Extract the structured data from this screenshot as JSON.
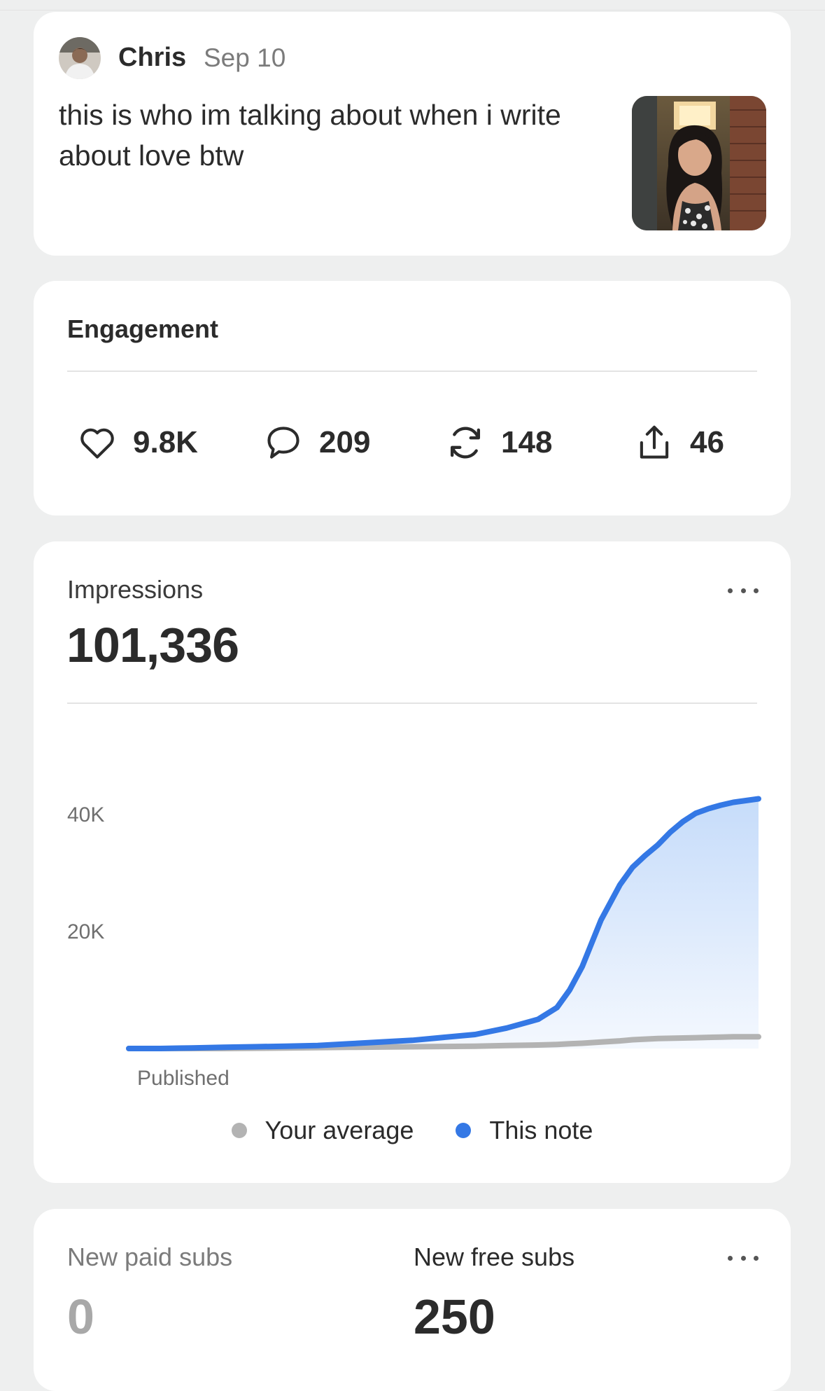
{
  "note": {
    "author": "Chris",
    "date": "Sep 10",
    "text": "this is who im talking about when i write about love btw"
  },
  "engagement": {
    "title": "Engagement",
    "likes": "9.8K",
    "comments": "209",
    "restacks": "148",
    "shares": "46"
  },
  "impressions": {
    "label": "Impressions",
    "total": "101,336",
    "legend": {
      "average": "Your average",
      "this_note": "This note"
    }
  },
  "chart_data": {
    "type": "area",
    "title": "",
    "xlabel": "",
    "ylabel": "",
    "x_tick_labels": [
      "Published"
    ],
    "y_ticks": [
      "20K",
      "40K"
    ],
    "y_tick_values": [
      20000,
      40000
    ],
    "ylim": [
      0,
      44000
    ],
    "legend_position": "bottom",
    "grid": false,
    "x": [
      0,
      0.05,
      0.1,
      0.15,
      0.2,
      0.25,
      0.3,
      0.35,
      0.4,
      0.45,
      0.5,
      0.55,
      0.6,
      0.65,
      0.68,
      0.7,
      0.72,
      0.75,
      0.78,
      0.8,
      0.82,
      0.84,
      0.86,
      0.88,
      0.9,
      0.92,
      0.94,
      0.96,
      0.98,
      1.0
    ],
    "series": [
      {
        "name": "Your average",
        "color": "#b3b3b3",
        "values": [
          0,
          0,
          0,
          0,
          50,
          100,
          150,
          200,
          250,
          300,
          350,
          400,
          500,
          600,
          700,
          800,
          900,
          1100,
          1300,
          1500,
          1600,
          1700,
          1750,
          1800,
          1850,
          1900,
          1950,
          2000,
          2000,
          2000
        ]
      },
      {
        "name": "This note",
        "color": "#3478e5",
        "values": [
          0,
          0,
          100,
          200,
          300,
          400,
          500,
          800,
          1100,
          1400,
          1900,
          2400,
          3500,
          5000,
          7000,
          10000,
          14000,
          22000,
          28000,
          31000,
          33000,
          34800,
          37000,
          38800,
          40200,
          41000,
          41600,
          42100,
          42400,
          42700
        ]
      }
    ]
  },
  "subs": {
    "paid_label": "New paid subs",
    "paid_value": "0",
    "free_label": "New free subs",
    "free_value": "250"
  },
  "colors": {
    "accent": "#3478e5",
    "average": "#b3b3b3",
    "card": "#ffffff",
    "background": "#eeefef"
  },
  "icons": [
    "heart-icon",
    "comment-icon",
    "restack-icon",
    "share-icon",
    "more-icon"
  ]
}
